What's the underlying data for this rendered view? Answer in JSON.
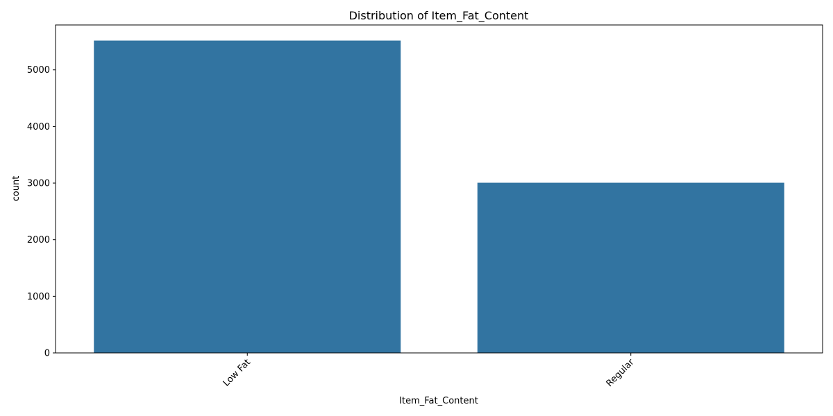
{
  "chart_data": {
    "type": "bar",
    "title": "Distribution of Item_Fat_Content",
    "xlabel": "Item_Fat_Content",
    "ylabel": "count",
    "categories": [
      "Low Fat",
      "Regular"
    ],
    "values": [
      5517,
      3006
    ],
    "ylim": [
      0,
      5793
    ],
    "yticks": [
      0,
      1000,
      2000,
      3000,
      4000,
      5000
    ],
    "x_tick_rotation_deg": 45,
    "bar_color": "#3274a1",
    "grid": false,
    "legend": "none"
  }
}
